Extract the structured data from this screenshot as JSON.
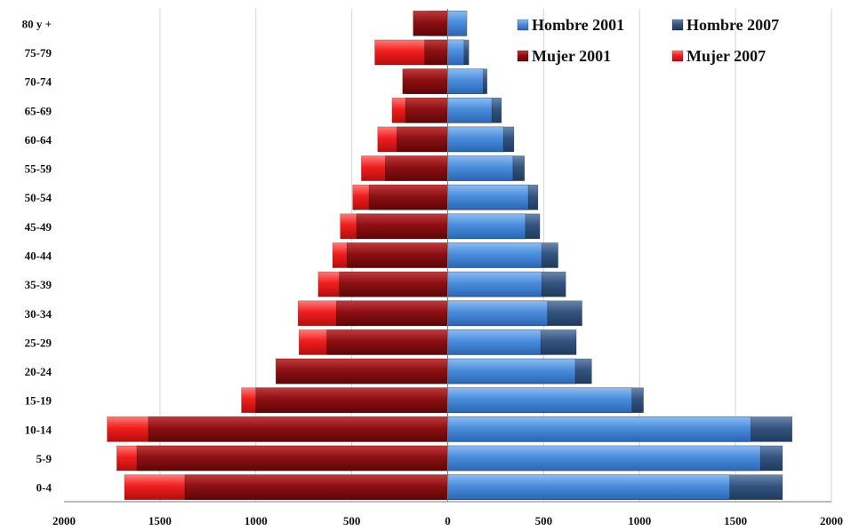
{
  "chart_data": {
    "type": "bar",
    "orientation": "horizontal",
    "stacked_pyramid": true,
    "categories": [
      "0-4",
      "5-9",
      "10-14",
      "15-19",
      "20-24",
      "25-29",
      "30-34",
      "35-39",
      "40-44",
      "45-49",
      "50-54",
      "55-59",
      "60-64",
      "65-69",
      "70-74",
      "75-79",
      "80 y +"
    ],
    "series": [
      {
        "name": "Hombre 2001",
        "side": "right",
        "color": "#3f7fcf",
        "values": [
          1470,
          1630,
          1580,
          960,
          665,
          485,
          520,
          490,
          490,
          405,
          420,
          340,
          290,
          230,
          185,
          85,
          100
        ]
      },
      {
        "name": "Hombre 2007",
        "side": "right",
        "color": "#2f4f7a",
        "values": [
          1745,
          1745,
          1795,
          1020,
          750,
          670,
          700,
          615,
          575,
          480,
          470,
          400,
          345,
          280,
          205,
          110,
          95
        ]
      },
      {
        "name": "Mujer 2001",
        "side": "left",
        "color": "#8b0d10",
        "values": [
          1370,
          1620,
          1560,
          1000,
          895,
          630,
          580,
          565,
          525,
          475,
          410,
          325,
          265,
          220,
          235,
          120,
          180
        ]
      },
      {
        "name": "Mujer 2007",
        "side": "left",
        "color": "#ee1c1c",
        "values": [
          1685,
          1725,
          1775,
          1075,
          895,
          775,
          780,
          675,
          600,
          560,
          495,
          450,
          365,
          290,
          215,
          380,
          105
        ]
      }
    ],
    "xlim": [
      -2000,
      2000
    ],
    "xticks": [
      -2000,
      -1500,
      -1000,
      -500,
      0,
      500,
      1000,
      1500,
      2000
    ],
    "xtick_labels": [
      "2000",
      "1500",
      "1000",
      "500",
      "0",
      "500",
      "1000",
      "1500",
      "2000"
    ],
    "title": "",
    "xlabel": "",
    "ylabel": "",
    "grid": "vertical",
    "legend_position": "top-right",
    "legend": [
      "Hombre 2001",
      "Hombre 2007",
      "Mujer 2001",
      "Mujer 2007"
    ]
  }
}
